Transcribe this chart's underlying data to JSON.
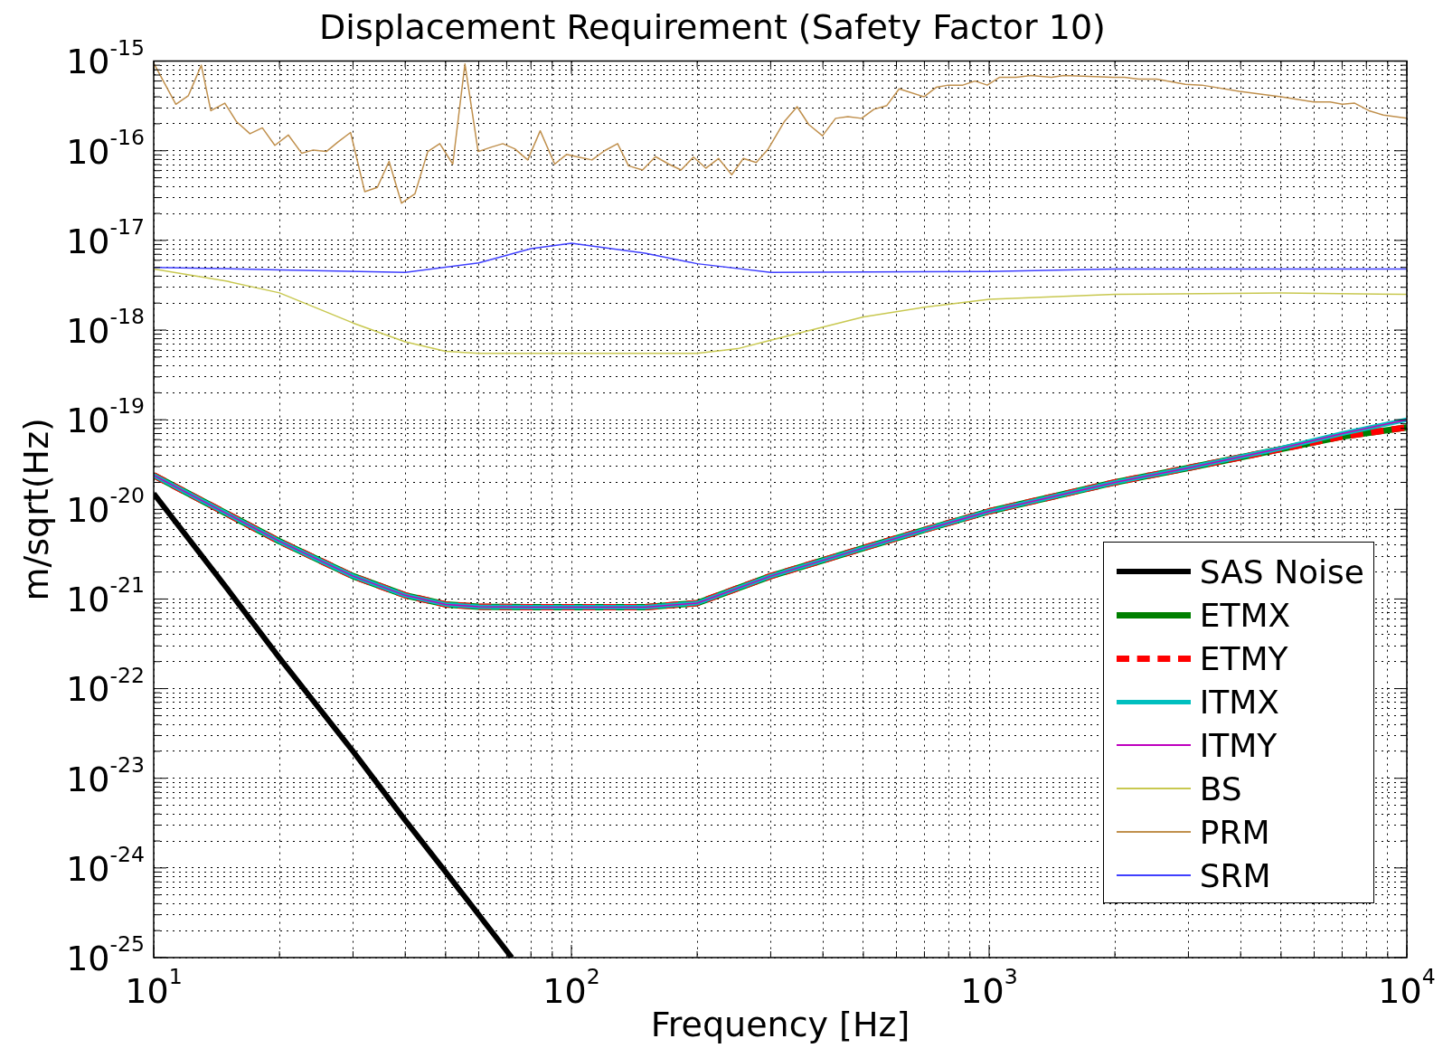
{
  "chart_data": {
    "type": "line",
    "title": "Displacement Requirement (Safety Factor 10)",
    "xlabel": "Frequency [Hz]",
    "ylabel": "m/sqrt(Hz)",
    "log": "xy",
    "grid": true,
    "legend": "bottom right",
    "marker": "none",
    "xlim": [
      10,
      10000
    ],
    "xticks": [
      {
        "value": 10,
        "label": "10$^{1}$"
      },
      {
        "value": 100,
        "label": "10$^{2}$"
      },
      {
        "value": 1000,
        "label": "10$^{3}$"
      },
      {
        "value": 10000,
        "label": "10$^{4}$"
      }
    ],
    "ylim": [
      1e-25,
      1e-15
    ],
    "yticks": [
      {
        "value": 1e-25,
        "label": "10$^{-25}$"
      },
      {
        "value": 1e-24,
        "label": "10$^{-24}$"
      },
      {
        "value": 1e-23,
        "label": "10$^{-23}$"
      },
      {
        "value": 1e-22,
        "label": "10$^{-22}$"
      },
      {
        "value": 1e-21,
        "label": "10$^{-21}$"
      },
      {
        "value": 1e-20,
        "label": "10$^{-20}$"
      },
      {
        "value": 1e-19,
        "label": "10$^{-19}$"
      },
      {
        "value": 1e-18,
        "label": "10$^{-18}$"
      },
      {
        "value": 1e-17,
        "label": "10$^{-17}$"
      },
      {
        "value": 1e-16,
        "label": "10$^{-16}$"
      },
      {
        "value": 1e-15,
        "label": "10$^{-15}$"
      }
    ],
    "series": [
      {
        "name": "SAS Noise",
        "color": "#000000",
        "line_style": "solid",
        "x": [
          10,
          15,
          20,
          30,
          40,
          50,
          60,
          72
        ],
        "values": [
          1.5e-20,
          1.3e-21,
          2.2e-22,
          2e-23,
          3.4e-24,
          9e-25,
          3e-25,
          1e-25
        ]
      },
      {
        "name": "ETMX",
        "color": "#008000",
        "line_style": "solid",
        "x": [
          10,
          15,
          20,
          30,
          40,
          50,
          60,
          80,
          100,
          150,
          200,
          300,
          500,
          700,
          1000,
          2000,
          3000,
          5000,
          7000,
          10000
        ],
        "values": [
          2.4e-20,
          8.9e-21,
          4.4e-21,
          1.8e-21,
          1.1e-21,
          8.7e-22,
          8.2e-22,
          8.1e-22,
          8.1e-22,
          8.1e-22,
          9e-22,
          1.8e-21,
          3.7e-21,
          5.9e-21,
          9.5e-21,
          2e-20,
          2.9e-20,
          4.7e-20,
          6.5e-20,
          8.2e-20
        ]
      },
      {
        "name": "ETMY",
        "color": "#ff0000",
        "line_style": "dashed",
        "x": [
          10,
          15,
          20,
          30,
          40,
          50,
          60,
          80,
          100,
          150,
          200,
          300,
          500,
          700,
          1000,
          2000,
          3000,
          5000,
          7000,
          10000
        ],
        "values": [
          2.4e-20,
          8.9e-21,
          4.4e-21,
          1.8e-21,
          1.1e-21,
          8.7e-22,
          8.2e-22,
          8.1e-22,
          8.1e-22,
          8.1e-22,
          9e-22,
          1.8e-21,
          3.7e-21,
          5.9e-21,
          9.5e-21,
          2e-20,
          2.9e-20,
          4.7e-20,
          6.5e-20,
          8.2e-20
        ]
      },
      {
        "name": "ITMX",
        "color": "#00bfbf",
        "line_style": "solid",
        "x": [
          10,
          15,
          20,
          30,
          40,
          50,
          60,
          80,
          100,
          150,
          200,
          300,
          500,
          700,
          1000,
          2000,
          3000,
          5000,
          7000,
          10000
        ],
        "values": [
          2.4e-20,
          8.9e-21,
          4.4e-21,
          1.8e-21,
          1.1e-21,
          8.7e-22,
          8.2e-22,
          8.1e-22,
          8.1e-22,
          8.1e-22,
          9e-22,
          1.8e-21,
          3.7e-21,
          5.9e-21,
          9.5e-21,
          2e-20,
          2.9e-20,
          4.8e-20,
          7e-20,
          1e-19
        ]
      },
      {
        "name": "ITMY",
        "color": "#bf00bf",
        "line_style": "solid",
        "x": [
          10,
          15,
          20,
          30,
          40,
          50,
          60,
          80,
          100,
          150,
          200,
          300,
          500,
          700,
          1000,
          2000,
          3000,
          5000,
          7000,
          10000
        ],
        "values": [
          2.4e-20,
          8.9e-21,
          4.4e-21,
          1.8e-21,
          1.1e-21,
          8.7e-22,
          8.2e-22,
          8.1e-22,
          8.1e-22,
          8.1e-22,
          9e-22,
          1.8e-21,
          3.7e-21,
          5.9e-21,
          9.5e-21,
          2e-20,
          2.9e-20,
          4.8e-20,
          7e-20,
          1e-19
        ]
      },
      {
        "name": "BS",
        "color": "#c8c850",
        "line_style": "solid",
        "x": [
          10,
          15,
          20,
          30,
          40,
          50,
          60,
          100,
          200,
          250,
          300,
          500,
          700,
          1000,
          2000,
          5000,
          10000
        ],
        "values": [
          4.8e-18,
          3.5e-18,
          2.6e-18,
          1.2e-18,
          7.4e-19,
          5.8e-19,
          5.5e-19,
          5.5e-19,
          5.5e-19,
          6.2e-19,
          7.7e-19,
          1.4e-18,
          1.8e-18,
          2.2e-18,
          2.5e-18,
          2.6e-18,
          2.5e-18
        ]
      },
      {
        "name": "PRM",
        "color": "#c0904d",
        "line_style": "solid",
        "x": [
          10,
          11.3,
          12.1,
          13,
          13.7,
          14.8,
          15.8,
          17,
          18.2,
          19.5,
          21,
          22.6,
          24.1,
          25.9,
          27.6,
          29.6,
          32,
          34.3,
          36.6,
          39.2,
          42.2,
          45.3,
          48.4,
          52,
          55.6,
          59.8,
          64.4,
          68.5,
          73.2,
          78.6,
          84.2,
          91.2,
          97.3,
          104,
          112,
          120,
          129,
          137,
          148,
          159,
          171,
          183,
          196,
          210,
          225,
          242,
          258,
          277,
          296,
          323,
          347,
          370,
          399,
          429,
          459,
          495,
          530,
          569,
          609,
          698,
          747,
          799,
          865,
          925,
          990,
          1060,
          1160,
          1260,
          1410,
          1510,
          1680,
          1980,
          2110,
          2280,
          2520,
          2950,
          3230,
          3970,
          4990,
          5980,
          6550,
          7010,
          7500,
          8120,
          8790,
          10000
        ],
        "values": [
          9.5e-16,
          3.3e-16,
          4.1e-16,
          9e-16,
          2.8e-16,
          3.4e-16,
          2.1e-16,
          1.55e-16,
          1.8e-16,
          1.15e-16,
          1.5e-16,
          9.4e-17,
          1.02e-16,
          9.8e-17,
          1.25e-16,
          1.6e-16,
          3.5e-17,
          3.9e-17,
          7.6e-17,
          2.6e-17,
          3.3e-17,
          9.8e-17,
          1.2e-16,
          7.1e-17,
          9.3e-16,
          9.8e-17,
          1.1e-16,
          1.2e-16,
          1.05e-16,
          7.9e-17,
          1.67e-16,
          7.1e-17,
          9.1e-17,
          8.5e-17,
          7.9e-17,
          1e-16,
          1.2e-16,
          6.8e-17,
          6.1e-17,
          8.6e-17,
          7.1e-17,
          6.1e-17,
          8.5e-17,
          6.4e-17,
          8.2e-17,
          5.4e-17,
          8.2e-17,
          7.4e-17,
          1.05e-16,
          2.1e-16,
          3.1e-16,
          1.96e-16,
          1.47e-16,
          2.3e-16,
          2.4e-16,
          2.3e-16,
          2.9e-16,
          3.2e-16,
          4.9e-16,
          4e-16,
          5.1e-16,
          5.4e-16,
          5.4e-16,
          6e-16,
          5.4e-16,
          6.6e-16,
          6.6e-16,
          6.9e-16,
          6.6e-16,
          6.9e-16,
          6.8e-16,
          6.6e-16,
          6.6e-16,
          6.3e-16,
          6.3e-16,
          5.5e-16,
          5.4e-16,
          4.6e-16,
          4e-16,
          3.5e-16,
          3.5e-16,
          3.3e-16,
          3.4e-16,
          2.8e-16,
          2.5e-16,
          2.3e-16
        ]
      },
      {
        "name": "SRM",
        "color": "#4040ff",
        "line_style": "solid",
        "x": [
          10,
          20,
          40,
          60,
          80,
          100,
          150,
          200,
          300,
          1000,
          2000,
          10000
        ],
        "values": [
          5e-18,
          4.7e-18,
          4.4e-18,
          5.6e-18,
          8.1e-18,
          9.3e-18,
          7.2e-18,
          5.5e-18,
          4.4e-18,
          4.5e-18,
          4.8e-18,
          4.8e-18
        ]
      }
    ]
  }
}
